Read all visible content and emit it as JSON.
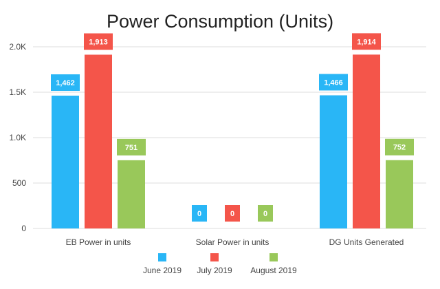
{
  "chart_data": {
    "type": "bar",
    "title": "Power Consumption (Units)",
    "xlabel": "",
    "ylabel": "",
    "categories": [
      "EB Power in units",
      "Solar Power in units",
      "DG Units Generated"
    ],
    "series": [
      {
        "name": "June 2019",
        "color": "#29b6f6",
        "values": [
          1462,
          0,
          1466
        ],
        "labels": [
          "1,462",
          "0",
          "1,466"
        ]
      },
      {
        "name": "July 2019",
        "color": "#f4554a",
        "values": [
          1913,
          0,
          1914
        ],
        "labels": [
          "1,913",
          "0",
          "1,914"
        ]
      },
      {
        "name": "August 2019",
        "color": "#99c85a",
        "values": [
          751,
          0,
          752
        ],
        "labels": [
          "751",
          "0",
          "752"
        ]
      }
    ],
    "ylim": [
      0,
      2000
    ],
    "yticks": [
      {
        "value": 0,
        "label": "0"
      },
      {
        "value": 500,
        "label": "500"
      },
      {
        "value": 1000,
        "label": "1.0K"
      },
      {
        "value": 1500,
        "label": "1.5K"
      },
      {
        "value": 2000,
        "label": "2.0K"
      }
    ],
    "grid": true,
    "legend_position": "bottom"
  }
}
